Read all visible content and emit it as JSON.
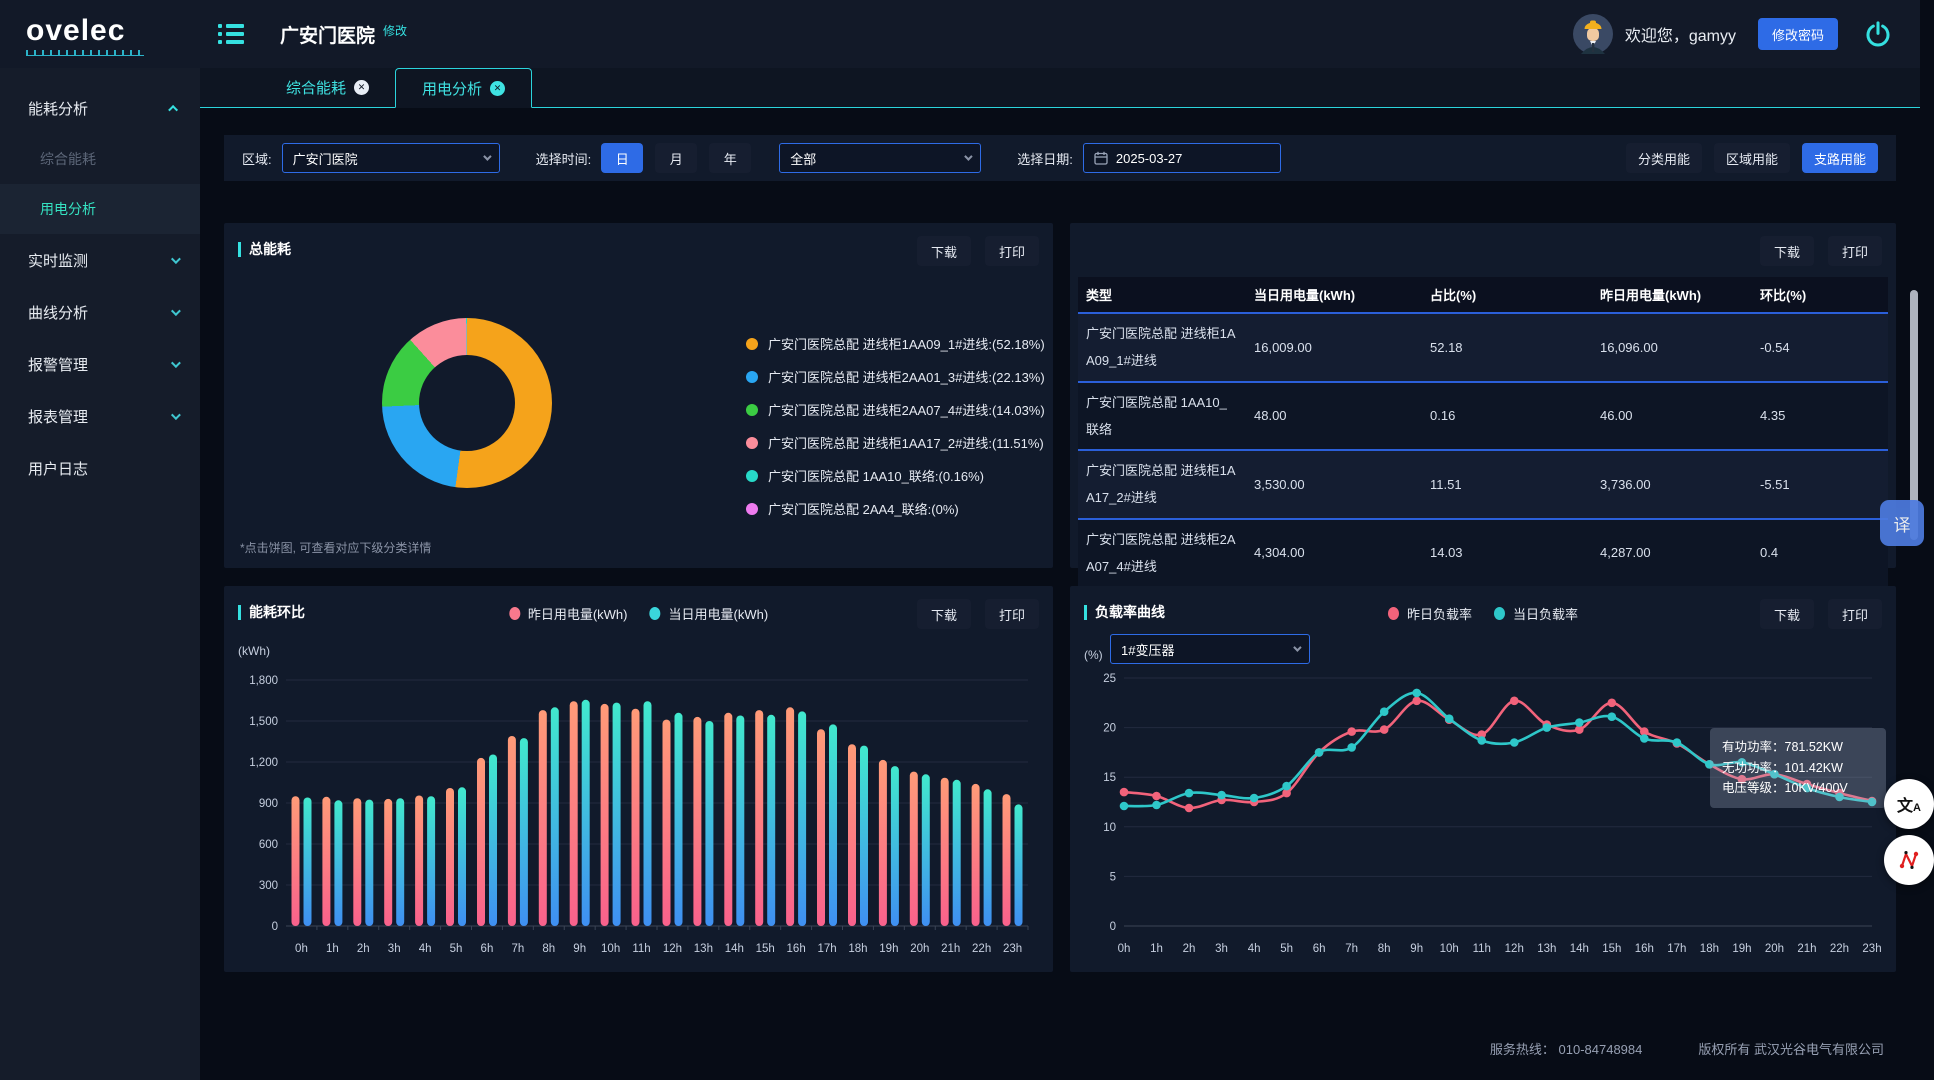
{
  "app": {
    "logo": "ovelec",
    "title": "广安门医院",
    "edit_link": "修改",
    "welcome": "欢迎您，gamyy",
    "change_password": "修改密码"
  },
  "icons": {
    "tab_close": "✕",
    "translate_badge": "译",
    "translate_cn": "文",
    "translate_a": "A"
  },
  "sidebar": {
    "items": [
      {
        "label": "能耗分析",
        "state": "expanded",
        "children": [
          {
            "label": "综合能耗",
            "active": false
          },
          {
            "label": "用电分析",
            "active": true
          }
        ]
      },
      {
        "label": "实时监测",
        "state": "collapsed"
      },
      {
        "label": "曲线分析",
        "state": "collapsed"
      },
      {
        "label": "报警管理",
        "state": "collapsed"
      },
      {
        "label": "报表管理",
        "state": "collapsed"
      },
      {
        "label": "用户日志",
        "state": "none"
      }
    ]
  },
  "tabs": [
    {
      "label": "综合能耗",
      "active": false
    },
    {
      "label": "用电分析",
      "active": true
    }
  ],
  "filters": {
    "region_label": "区域:",
    "region_value": "广安门医院",
    "time_label": "选择时间:",
    "time_options": [
      "日",
      "月",
      "年"
    ],
    "time_selected": "日",
    "scope_value": "全部",
    "date_label": "选择日期:",
    "date_value": "2025-03-27",
    "mode_buttons": [
      {
        "label": "分类用能",
        "active": false
      },
      {
        "label": "区域用能",
        "active": false
      },
      {
        "label": "支路用能",
        "active": true
      }
    ]
  },
  "panels": {
    "energy_total": {
      "title": "总能耗",
      "download": "下载",
      "print": "打印",
      "note": "*点击饼图, 可查看对应下级分类详情"
    },
    "table": {
      "download": "下载",
      "print": "打印",
      "columns": [
        "类型",
        "当日用电量(kWh)",
        "占比(%)",
        "昨日用电量(kWh)",
        "环比(%)"
      ],
      "rows": [
        [
          "广安门医院总配 进线柜1AA09_1#进线",
          "16,009.00",
          "52.18",
          "16,096.00",
          "-0.54"
        ],
        [
          "广安门医院总配 1AA10_联络",
          "48.00",
          "0.16",
          "46.00",
          "4.35"
        ],
        [
          "广安门医院总配 进线柜1AA17_2#进线",
          "3,530.00",
          "11.51",
          "3,736.00",
          "-5.51"
        ],
        [
          "广安门医院总配 进线柜2AA07_4#进线",
          "4,304.00",
          "14.03",
          "4,287.00",
          "0.4"
        ]
      ]
    },
    "energy_compare": {
      "title": "能耗环比",
      "download": "下载",
      "print": "打印",
      "unit": "(kWh)"
    },
    "load_rate": {
      "title": "负载率曲线",
      "download": "下载",
      "print": "打印",
      "unit": "(%)",
      "transformer": "1#变压器",
      "tooltip": {
        "line1": "有功功率：781.52KW",
        "line2": "无功功率：101.42KW",
        "line3": "电压等级：10KV/400V"
      }
    }
  },
  "chart_data": [
    {
      "id": "energy-donut",
      "type": "pie",
      "title": "总能耗",
      "inner_radius": 0.56,
      "legend_position": "right",
      "slices": [
        {
          "label": "广安门医院总配 进线柜1AA09_1#进线",
          "pct": 52.18,
          "color": "#F5A31B"
        },
        {
          "label": "广安门医院总配 进线柜2AA01_3#进线",
          "pct": 22.13,
          "color": "#29A6F2"
        },
        {
          "label": "广安门医院总配 进线柜2AA07_4#进线",
          "pct": 14.03,
          "color": "#3BCC43"
        },
        {
          "label": "广安门医院总配 进线柜1AA17_2#进线",
          "pct": 11.51,
          "color": "#FB8D9B"
        },
        {
          "label": "广安门医院总配 1AA10_联络",
          "pct": 0.16,
          "color": "#27D9C8"
        },
        {
          "label": "广安门医院总配 2AA4_联络",
          "pct": 0,
          "color": "#EE7BEF"
        }
      ]
    },
    {
      "id": "hourly-energy-bars",
      "type": "bar",
      "title": "能耗环比",
      "ylabel": "(kWh)",
      "ylim": [
        0,
        1800
      ],
      "ytick_step": 300,
      "grid": true,
      "legend_position": "top",
      "categories": [
        "0h",
        "1h",
        "2h",
        "3h",
        "4h",
        "5h",
        "6h",
        "7h",
        "8h",
        "9h",
        "10h",
        "11h",
        "12h",
        "13h",
        "14h",
        "15h",
        "16h",
        "17h",
        "18h",
        "19h",
        "20h",
        "21h",
        "22h",
        "23h"
      ],
      "series": [
        {
          "name": "昨日用电量(kWh)",
          "color_top": "#FF9B78",
          "color_bottom": "#F9618C",
          "legend_color": "#F8798D",
          "values": [
            950,
            945,
            935,
            930,
            955,
            1010,
            1230,
            1390,
            1580,
            1645,
            1625,
            1590,
            1510,
            1530,
            1560,
            1580,
            1600,
            1440,
            1330,
            1215,
            1130,
            1085,
            1040,
            965
          ]
        },
        {
          "name": "当日用电量(kWh)",
          "color_top": "#41E9CD",
          "color_bottom": "#3F8FF2",
          "legend_color": "#3AD6DC",
          "values": [
            940,
            920,
            925,
            935,
            950,
            1015,
            1255,
            1375,
            1600,
            1655,
            1635,
            1645,
            1560,
            1500,
            1540,
            1545,
            1570,
            1475,
            1320,
            1170,
            1110,
            1070,
            1000,
            890
          ]
        }
      ]
    },
    {
      "id": "load-rate-lines",
      "type": "line",
      "title": "负载率曲线",
      "ylabel": "(%)",
      "ylim": [
        0,
        25
      ],
      "ytick_step": 5,
      "grid": true,
      "legend_position": "top",
      "smooth": true,
      "categories": [
        "0h",
        "1h",
        "2h",
        "3h",
        "4h",
        "5h",
        "6h",
        "7h",
        "8h",
        "9h",
        "10h",
        "11h",
        "12h",
        "13h",
        "14h",
        "15h",
        "16h",
        "17h",
        "18h",
        "19h",
        "20h",
        "21h",
        "22h",
        "23h"
      ],
      "series": [
        {
          "name": "昨日负载率",
          "color": "#F2637B",
          "values": [
            13.5,
            13.1,
            11.9,
            12.7,
            12.5,
            13.4,
            17.5,
            19.6,
            19.8,
            22.7,
            20.8,
            19.3,
            22.7,
            20.3,
            19.8,
            22.5,
            19.6,
            18.4,
            16.3,
            14.8,
            15.3,
            14.3,
            13.4,
            12.6
          ]
        },
        {
          "name": "当日负载率",
          "color": "#2EC7C9",
          "values": [
            12.1,
            12.2,
            13.4,
            13.2,
            12.9,
            14.1,
            17.5,
            18.0,
            21.6,
            23.5,
            20.9,
            18.7,
            18.5,
            20.0,
            20.5,
            21.1,
            18.9,
            18.5,
            16.3,
            16.5,
            15.3,
            13.9,
            13.0,
            12.5
          ]
        }
      ]
    }
  ],
  "footer": {
    "hotline_label": "服务热线：",
    "hotline": "010-84748984",
    "copyright": "版权所有 武汉光谷电气有限公司"
  }
}
